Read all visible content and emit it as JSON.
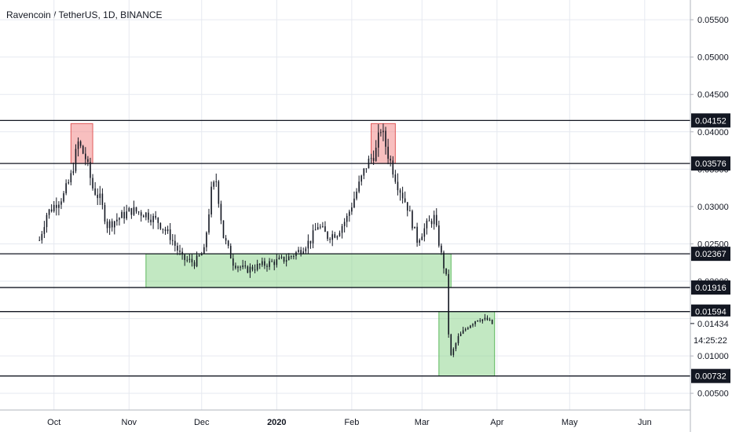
{
  "header": {
    "title": "Ravencoin / TetherUS, 1D, BINANCE"
  },
  "colors": {
    "line": "#131722",
    "grid": "#e6e9f0",
    "red_zone": "#f28b8b",
    "green_zone": "#8fd68f",
    "tag_bg": "#131722"
  },
  "chart_data": {
    "type": "candlestick",
    "symbol": "Ravencoin / TetherUS",
    "interval": "1D",
    "exchange": "BINANCE",
    "x_ticks": [
      "Oct",
      "Nov",
      "Dec",
      "2020",
      "Feb",
      "Mar",
      "Apr",
      "May",
      "Jun"
    ],
    "x_tick_dates": [
      "2019-10-01",
      "2019-11-01",
      "2019-12-01",
      "2020-01-01",
      "2020-02-01",
      "2020-03-01",
      "2020-04-01",
      "2020-05-01",
      "2020-06-01"
    ],
    "y_ticks": [
      "0.05500",
      "0.05000",
      "0.04500",
      "0.04000",
      "0.03500",
      "0.03000",
      "0.02500",
      "0.02000",
      "0.01500",
      "0.01000",
      "0.00500"
    ],
    "y_range": [
      0.0035,
      0.0568
    ],
    "x_range": [
      "2019-09-10",
      "2020-06-15"
    ],
    "horizontal_levels": [
      0.04152,
      0.03576,
      0.02367,
      0.01916,
      0.01594,
      0.00732
    ],
    "level_labels": [
      "0.04152",
      "0.03576",
      "0.02367",
      "0.01916",
      "0.01594",
      "0.00732"
    ],
    "last_price": "0.01434",
    "countdown": "14:25:22",
    "zones": [
      {
        "color": "red",
        "from": "2019-10-08",
        "to": "2019-10-17",
        "low": 0.03576,
        "high": 0.0411
      },
      {
        "color": "red",
        "from": "2020-02-09",
        "to": "2020-02-19",
        "low": 0.03576,
        "high": 0.0411
      },
      {
        "color": "green",
        "from": "2019-11-08",
        "to": "2020-03-13",
        "low": 0.01916,
        "high": 0.02367
      },
      {
        "color": "green",
        "from": "2020-03-08",
        "to": "2020-03-31",
        "low": 0.00732,
        "high": 0.01594
      }
    ],
    "close_path": [
      [
        "2019-09-25",
        0.0255
      ],
      [
        "2019-09-28",
        0.029
      ],
      [
        "2019-10-02",
        0.0305
      ],
      [
        "2019-10-05",
        0.0315
      ],
      [
        "2019-10-08",
        0.034
      ],
      [
        "2019-10-11",
        0.0385
      ],
      [
        "2019-10-14",
        0.0365
      ],
      [
        "2019-10-17",
        0.0325
      ],
      [
        "2019-10-20",
        0.031
      ],
      [
        "2019-10-23",
        0.0275
      ],
      [
        "2019-10-28",
        0.0285
      ],
      [
        "2019-11-02",
        0.0295
      ],
      [
        "2019-11-08",
        0.029
      ],
      [
        "2019-11-13",
        0.028
      ],
      [
        "2019-11-18",
        0.026
      ],
      [
        "2019-11-23",
        0.023
      ],
      [
        "2019-11-28",
        0.0225
      ],
      [
        "2019-12-02",
        0.024
      ],
      [
        "2019-12-05",
        0.032
      ],
      [
        "2019-12-07",
        0.0335
      ],
      [
        "2019-12-10",
        0.026
      ],
      [
        "2019-12-14",
        0.0225
      ],
      [
        "2019-12-19",
        0.0215
      ],
      [
        "2019-12-24",
        0.022
      ],
      [
        "2019-12-30",
        0.0225
      ],
      [
        "2020-01-05",
        0.023
      ],
      [
        "2020-01-10",
        0.024
      ],
      [
        "2020-01-15",
        0.0255
      ],
      [
        "2020-01-18",
        0.0275
      ],
      [
        "2020-01-22",
        0.026
      ],
      [
        "2020-01-26",
        0.0265
      ],
      [
        "2020-01-30",
        0.0285
      ],
      [
        "2020-02-03",
        0.032
      ],
      [
        "2020-02-07",
        0.0355
      ],
      [
        "2020-02-11",
        0.0375
      ],
      [
        "2020-02-13",
        0.0405
      ],
      [
        "2020-02-16",
        0.037
      ],
      [
        "2020-02-20",
        0.033
      ],
      [
        "2020-02-24",
        0.03
      ],
      [
        "2020-02-28",
        0.0255
      ],
      [
        "2020-03-03",
        0.0275
      ],
      [
        "2020-03-06",
        0.0285
      ],
      [
        "2020-03-09",
        0.0235
      ],
      [
        "2020-03-11",
        0.0205
      ],
      [
        "2020-03-12",
        0.013
      ],
      [
        "2020-03-13",
        0.01
      ],
      [
        "2020-03-16",
        0.0125
      ],
      [
        "2020-03-20",
        0.014
      ],
      [
        "2020-03-24",
        0.015
      ],
      [
        "2020-03-28",
        0.0148
      ],
      [
        "2020-03-30",
        0.0143
      ]
    ]
  }
}
